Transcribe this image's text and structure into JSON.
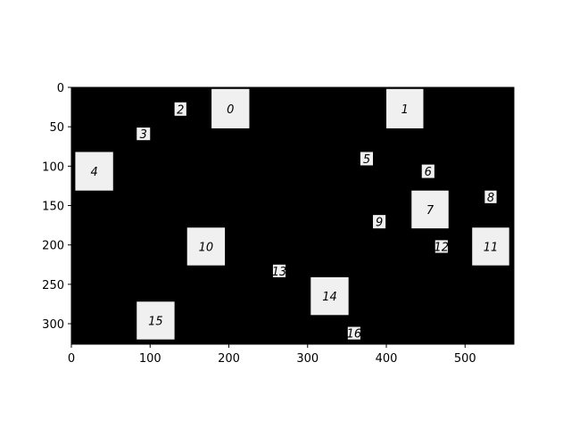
{
  "chart_data": {
    "type": "heatmap",
    "description_free": true,
    "xlim": [
      0,
      562
    ],
    "ylim": [
      326,
      0
    ],
    "y_inverted": true,
    "x_ticks": [
      0,
      100,
      200,
      300,
      400,
      500
    ],
    "y_ticks": [
      0,
      50,
      100,
      150,
      200,
      250,
      300
    ],
    "colors": {
      "background": "#000000",
      "box": "#f0f0f0",
      "text": "#000000",
      "axis": "#000000"
    },
    "boxes": [
      {
        "label": "0",
        "x0": 178,
        "y0": 2,
        "x1": 226,
        "y1": 52
      },
      {
        "label": "1",
        "x0": 400,
        "y0": 2,
        "x1": 447,
        "y1": 52
      },
      {
        "label": "2",
        "x0": 131,
        "y0": 19,
        "x1": 146,
        "y1": 36
      },
      {
        "label": "3",
        "x0": 83,
        "y0": 51,
        "x1": 100,
        "y1": 67
      },
      {
        "label": "4",
        "x0": 5,
        "y0": 82,
        "x1": 53,
        "y1": 131
      },
      {
        "label": "5",
        "x0": 367,
        "y0": 82,
        "x1": 383,
        "y1": 99
      },
      {
        "label": "6",
        "x0": 445,
        "y0": 98,
        "x1": 461,
        "y1": 115
      },
      {
        "label": "7",
        "x0": 432,
        "y0": 131,
        "x1": 479,
        "y1": 179
      },
      {
        "label": "8",
        "x0": 525,
        "y0": 131,
        "x1": 540,
        "y1": 147
      },
      {
        "label": "9",
        "x0": 383,
        "y0": 162,
        "x1": 399,
        "y1": 179
      },
      {
        "label": "10",
        "x0": 147,
        "y0": 178,
        "x1": 195,
        "y1": 226
      },
      {
        "label": "11",
        "x0": 509,
        "y0": 178,
        "x1": 556,
        "y1": 226
      },
      {
        "label": "12",
        "x0": 462,
        "y0": 194,
        "x1": 478,
        "y1": 210
      },
      {
        "label": "13",
        "x0": 256,
        "y0": 225,
        "x1": 272,
        "y1": 241
      },
      {
        "label": "14",
        "x0": 304,
        "y0": 241,
        "x1": 352,
        "y1": 289
      },
      {
        "label": "15",
        "x0": 83,
        "y0": 272,
        "x1": 131,
        "y1": 320
      },
      {
        "label": "16",
        "x0": 351,
        "y0": 304,
        "x1": 367,
        "y1": 320
      }
    ]
  }
}
